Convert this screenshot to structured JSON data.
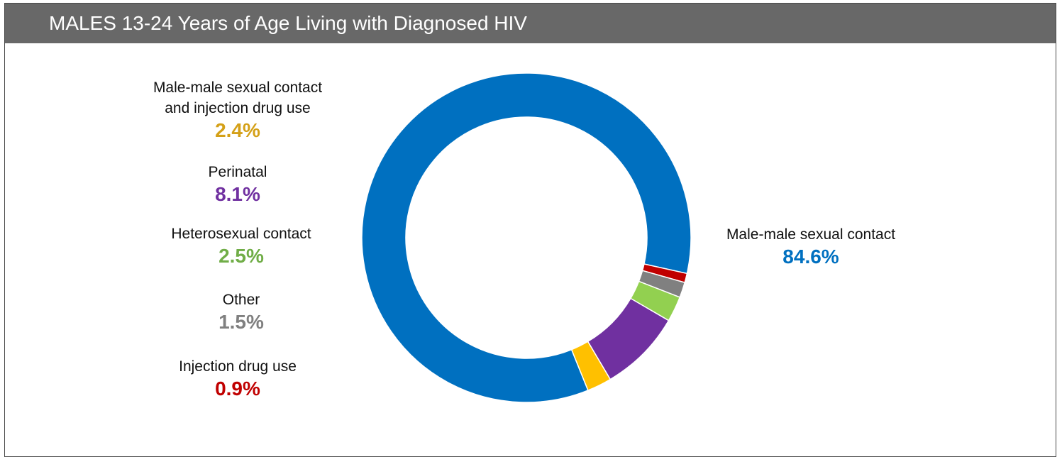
{
  "header": {
    "title": "MALES 13-24 Years of Age Living with Diagnosed HIV"
  },
  "chart_data": {
    "type": "pie",
    "donut": true,
    "slices": [
      {
        "label": "Male-male sexual contact",
        "value": 84.6,
        "value_label": "84.6%",
        "color": "#0070C0"
      },
      {
        "label": "Injection drug use",
        "value": 0.9,
        "value_label": "0.9%",
        "color": "#C00000"
      },
      {
        "label": "Other",
        "value": 1.5,
        "value_label": "1.5%",
        "color": "#808080"
      },
      {
        "label": "Heterosexual contact",
        "value": 2.5,
        "value_label": "2.5%",
        "color": "#92D050"
      },
      {
        "label": "Perinatal",
        "value": 8.1,
        "value_label": "8.1%",
        "color": "#7030A0"
      },
      {
        "label": "Male-male sexual contact and injection drug use",
        "value": 2.4,
        "value_label": "2.4%",
        "color": "#FFC000"
      }
    ],
    "label_colors": {
      "Male-male sexual contact": "#0070C0",
      "Injection drug use": "#C00000",
      "Other": "#808080",
      "Heterosexual contact": "#70AD47",
      "Perinatal": "#7030A0",
      "Male-male sexual contact and injection drug use": "#D4A017"
    }
  },
  "labels": {
    "mmsc": {
      "name": "Male-male sexual contact",
      "pct": "84.6%"
    },
    "mmsc_idu": {
      "line1": "Male-male sexual contact",
      "line2": "and injection drug use",
      "pct": "2.4%"
    },
    "perinatal": {
      "name": "Perinatal",
      "pct": "8.1%"
    },
    "hetero": {
      "name": "Heterosexual contact",
      "pct": "2.5%"
    },
    "other": {
      "name": "Other",
      "pct": "1.5%"
    },
    "idu": {
      "name": "Injection drug use",
      "pct": "0.9%"
    }
  }
}
